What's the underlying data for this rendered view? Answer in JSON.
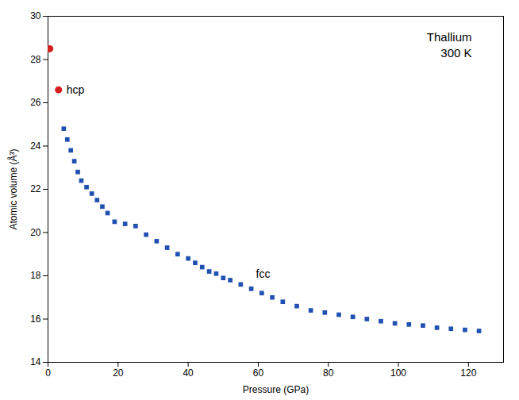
{
  "chart_data": {
    "type": "scatter",
    "xlabel": "Pressure (GPa)",
    "ylabel": "Atomic volume (Å³)",
    "xlim": [
      0,
      130
    ],
    "ylim": [
      14,
      30
    ],
    "xticks": [
      0,
      20,
      40,
      60,
      80,
      100,
      120
    ],
    "yticks": [
      14,
      16,
      18,
      20,
      22,
      24,
      26,
      28,
      30
    ],
    "grid": false,
    "series": [
      {
        "name": "hcp",
        "color": "#d42020",
        "marker": "circle",
        "x": [
          0.5,
          3.0
        ],
        "values": [
          28.5,
          26.6
        ]
      },
      {
        "name": "fcc",
        "color": "#2050b0",
        "marker": "square",
        "x": [
          4.5,
          5.5,
          6.5,
          7.5,
          8.5,
          9.5,
          11.0,
          12.5,
          14.0,
          15.5,
          17.0,
          19.0,
          22.0,
          25.0,
          28.0,
          31.0,
          34.0,
          37.0,
          40.0,
          42.0,
          44.0,
          46.0,
          48.0,
          50.0,
          52.0,
          55.0,
          58.0,
          61.0,
          64.0,
          67.0,
          71.0,
          75.0,
          79.0,
          83.0,
          87.0,
          91.0,
          95.0,
          99.0,
          103.0,
          107.0,
          111.0,
          115.0,
          119.0,
          123.0
        ],
        "values": [
          24.8,
          24.3,
          23.8,
          23.3,
          22.8,
          22.4,
          22.1,
          21.8,
          21.5,
          21.2,
          20.9,
          20.5,
          20.4,
          20.3,
          19.9,
          19.6,
          19.3,
          19.0,
          18.8,
          18.6,
          18.4,
          18.2,
          18.1,
          17.9,
          17.8,
          17.6,
          17.4,
          17.2,
          17.0,
          16.8,
          16.6,
          16.4,
          16.3,
          16.2,
          16.1,
          16.0,
          15.9,
          15.8,
          15.75,
          15.7,
          15.6,
          15.55,
          15.5,
          15.45
        ]
      }
    ],
    "annotations": [
      "Thallium",
      "300 K"
    ]
  }
}
